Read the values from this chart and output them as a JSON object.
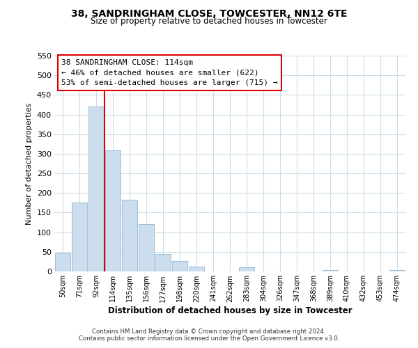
{
  "title": "38, SANDRINGHAM CLOSE, TOWCESTER, NN12 6TE",
  "subtitle": "Size of property relative to detached houses in Towcester",
  "xlabel": "Distribution of detached houses by size in Towcester",
  "ylabel": "Number of detached properties",
  "bar_labels": [
    "50sqm",
    "71sqm",
    "92sqm",
    "114sqm",
    "135sqm",
    "156sqm",
    "177sqm",
    "198sqm",
    "220sqm",
    "241sqm",
    "262sqm",
    "283sqm",
    "304sqm",
    "326sqm",
    "347sqm",
    "368sqm",
    "389sqm",
    "410sqm",
    "432sqm",
    "453sqm",
    "474sqm"
  ],
  "bar_values": [
    47,
    175,
    420,
    308,
    183,
    120,
    45,
    27,
    12,
    0,
    0,
    10,
    0,
    0,
    0,
    0,
    3,
    0,
    0,
    0,
    3
  ],
  "bar_color": "#ccdded",
  "bar_edge_color": "#9bbfd6",
  "vline_x_index": 3,
  "vline_color": "#dd0000",
  "ylim": [
    0,
    550
  ],
  "yticks": [
    0,
    50,
    100,
    150,
    200,
    250,
    300,
    350,
    400,
    450,
    500,
    550
  ],
  "annotation_title": "38 SANDRINGHAM CLOSE: 114sqm",
  "annotation_line1": "← 46% of detached houses are smaller (622)",
  "annotation_line2": "53% of semi-detached houses are larger (715) →",
  "footer_line1": "Contains HM Land Registry data © Crown copyright and database right 2024.",
  "footer_line2": "Contains public sector information licensed under the Open Government Licence v3.0.",
  "background_color": "#ffffff",
  "grid_color": "#ccdde8"
}
